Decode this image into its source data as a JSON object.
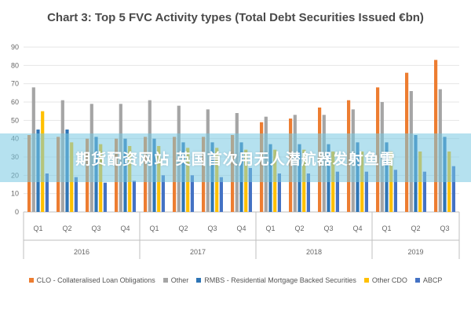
{
  "banner": {
    "text": "期货配资网站 英国首次用无人潜航器发射鱼雷"
  },
  "chart_data": {
    "type": "bar",
    "title": "Chart 3: Top 5 FVC Activity types (Total Debt Securities Issued €bn)",
    "xlabel": "",
    "ylabel": "",
    "ylim": [
      0,
      90
    ],
    "yticks": [
      0,
      10,
      20,
      30,
      40,
      50,
      60,
      70,
      80,
      90
    ],
    "grid": true,
    "legend_position": "bottom",
    "categories": [
      "Q1",
      "Q2",
      "Q3",
      "Q4",
      "Q1",
      "Q2",
      "Q3",
      "Q4",
      "Q1",
      "Q2",
      "Q3",
      "Q4",
      "Q1",
      "Q2",
      "Q3"
    ],
    "groups": [
      {
        "label": "2016",
        "count": 4
      },
      {
        "label": "2017",
        "count": 4
      },
      {
        "label": "2018",
        "count": 4
      },
      {
        "label": "2019",
        "count": 3
      }
    ],
    "series": [
      {
        "name": "CLO - Collateralised Loan Obligations",
        "color": "#ed7d31",
        "values": [
          42,
          41,
          40,
          40,
          41,
          41,
          41,
          42,
          49,
          51,
          57,
          61,
          68,
          76,
          83
        ]
      },
      {
        "name": "Other",
        "color": "#a5a5a5",
        "values": [
          68,
          61,
          59,
          59,
          61,
          58,
          56,
          54,
          52,
          53,
          53,
          56,
          60,
          66,
          67
        ]
      },
      {
        "name": "RMBS - Residential Mortgage Backed Securities",
        "color": "#2e75b6",
        "values": [
          45,
          45,
          41,
          40,
          40,
          38,
          38,
          38,
          37,
          37,
          37,
          38,
          38,
          42,
          41
        ]
      },
      {
        "name": "Other CDO",
        "color": "#ffc000",
        "values": [
          55,
          38,
          37,
          36,
          36,
          35,
          35,
          34,
          34,
          34,
          33,
          33,
          33,
          33,
          33
        ]
      },
      {
        "name": "ABCP",
        "color": "#4472c4",
        "values": [
          21,
          19,
          16,
          17,
          20,
          20,
          19,
          24,
          21,
          21,
          22,
          22,
          23,
          22,
          25
        ]
      }
    ]
  }
}
